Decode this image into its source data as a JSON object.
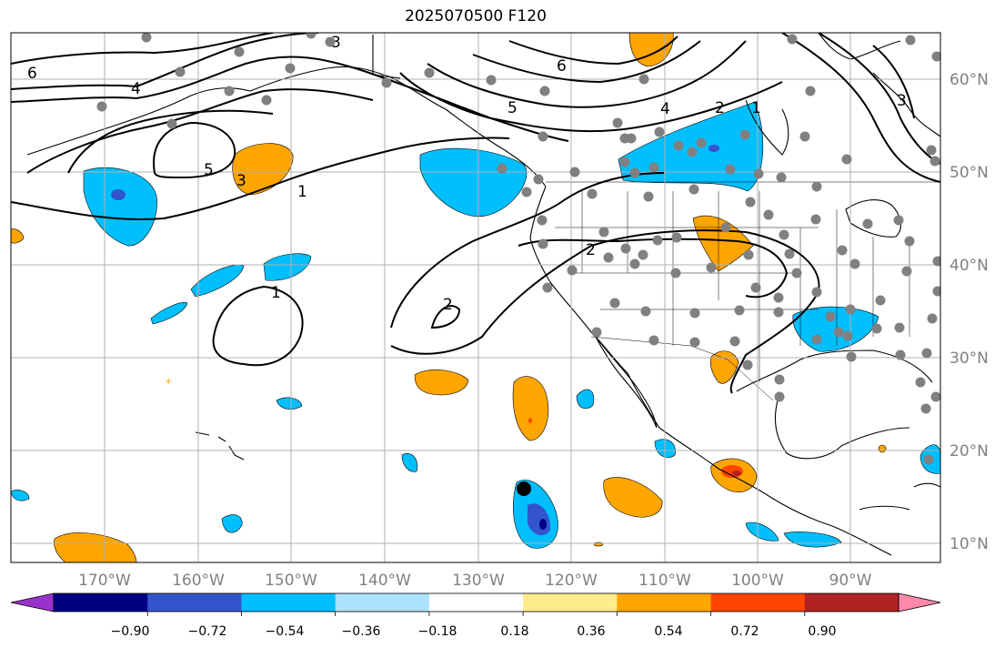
{
  "title": "2025070500 F120",
  "map": {
    "lon_range": [
      -180,
      -80
    ],
    "lat_range": [
      8,
      65
    ],
    "lon_ticks": [
      "170°W",
      "160°W",
      "150°W",
      "140°W",
      "130°W",
      "120°W",
      "110°W",
      "100°W",
      "90°W"
    ],
    "lat_ticks": [
      "60°N",
      "50°N",
      "40°N",
      "30°N",
      "20°N",
      "10°N"
    ],
    "contour_labels": [
      "6",
      "4",
      "3",
      "5",
      "3",
      "1",
      "1",
      "2",
      "2",
      "6",
      "5",
      "4",
      "2",
      "1",
      "3"
    ],
    "colors": {
      "grid": "#b0b0b0",
      "tick_label": "#808080",
      "station_dot": "#808080"
    }
  },
  "colorbar": {
    "colors": [
      "#9932cc",
      "#000080",
      "#3355cc",
      "#00bfff",
      "#aee3ff",
      "#ffffff",
      "#ffec8b",
      "#ffa500",
      "#ff4500",
      "#b22222",
      "#ff88aa"
    ],
    "tick_labels": [
      "−0.90",
      "−0.72",
      "−0.54",
      "−0.36",
      "−0.18",
      "0.18",
      "0.36",
      "0.54",
      "0.72",
      "0.90"
    ]
  }
}
